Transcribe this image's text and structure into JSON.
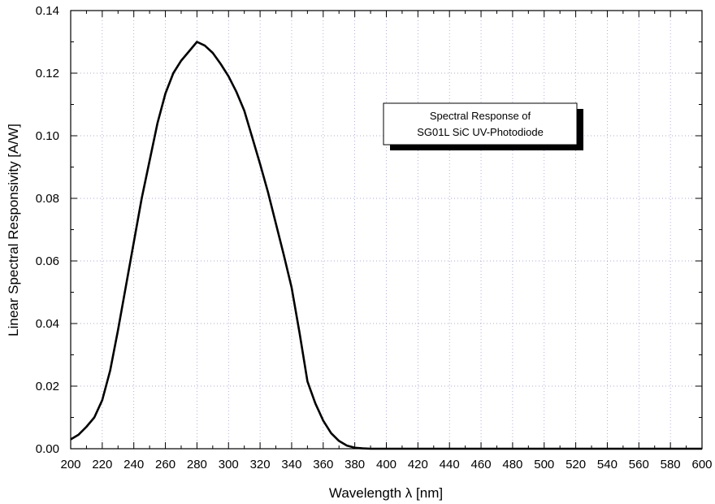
{
  "chart_data": {
    "type": "line",
    "xlabel": "Wavelength λ [nm]",
    "ylabel": "Linear Spectral Responsivity [A/W]",
    "xlim": [
      200,
      600
    ],
    "ylim": [
      0,
      0.14
    ],
    "x_ticks": [
      "200",
      "220",
      "240",
      "260",
      "280",
      "300",
      "320",
      "340",
      "360",
      "380",
      "400",
      "420",
      "440",
      "460",
      "480",
      "500",
      "520",
      "540",
      "560",
      "580",
      "600"
    ],
    "y_ticks": [
      "0.00",
      "0.02",
      "0.04",
      "0.06",
      "0.08",
      "0.10",
      "0.12",
      "0.14"
    ],
    "grid": true,
    "legend_position": "top-right",
    "annotation_lines": [
      "Spectral Response of",
      "SG01L SiC UV-Photodiode"
    ],
    "series": [
      {
        "color": "#000000",
        "x": [
          200,
          205,
          210,
          215,
          220,
          225,
          230,
          235,
          240,
          245,
          250,
          255,
          260,
          265,
          270,
          275,
          280,
          285,
          290,
          295,
          300,
          305,
          310,
          315,
          320,
          325,
          330,
          335,
          340,
          345,
          350,
          355,
          360,
          365,
          370,
          375,
          380,
          385,
          390,
          400,
          420,
          450,
          500,
          550,
          600
        ],
        "y": [
          0.003,
          0.0045,
          0.007,
          0.01,
          0.0155,
          0.025,
          0.038,
          0.052,
          0.066,
          0.08,
          0.092,
          0.104,
          0.1135,
          0.12,
          0.124,
          0.127,
          0.13,
          0.1288,
          0.1265,
          0.123,
          0.119,
          0.114,
          0.108,
          0.0995,
          0.091,
          0.082,
          0.072,
          0.062,
          0.0515,
          0.037,
          0.0215,
          0.0145,
          0.009,
          0.005,
          0.0025,
          0.001,
          0.0003,
          0.0001,
          0.0,
          0.0,
          0.0,
          0.0,
          0.0,
          0.0,
          0.0
        ]
      }
    ]
  }
}
